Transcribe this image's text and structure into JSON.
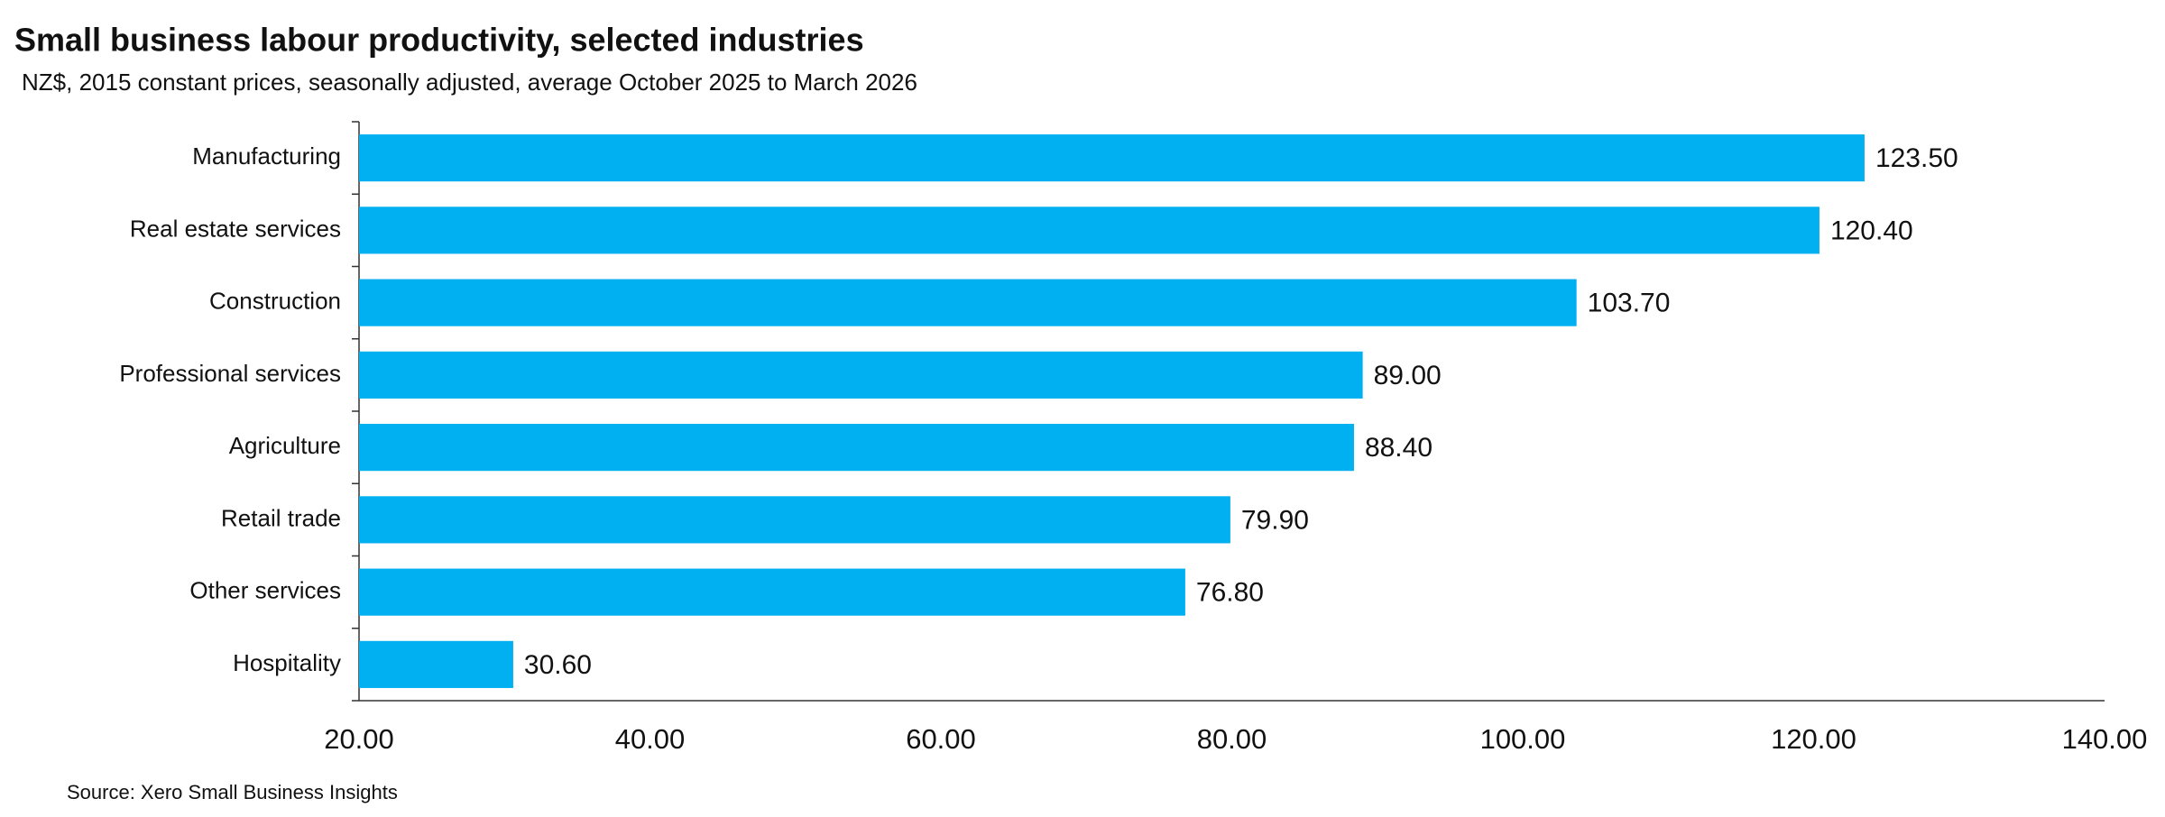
{
  "chart_data": {
    "type": "barh",
    "title": "Small business labour productivity, selected industries",
    "subtitle": "NZ$, 2015 constant prices, seasonally adjusted, average October 2025 to March 2026",
    "source": "Source: Xero Small Business Insights",
    "categories": [
      "Manufacturing",
      "Real estate services",
      "Construction",
      "Professional services",
      "Agriculture",
      "Retail trade",
      "Other services",
      "Hospitality"
    ],
    "values": [
      123.5,
      120.4,
      103.7,
      89.0,
      88.4,
      79.9,
      76.8,
      30.6
    ],
    "value_labels": [
      "123.50",
      "120.40",
      "103.70",
      "89.00",
      "88.40",
      "79.90",
      "76.80",
      "30.60"
    ],
    "color": "#00b0f0",
    "xlim": [
      20,
      140
    ],
    "xticks": [
      {
        "value": 20,
        "label": "20.00"
      },
      {
        "value": 40,
        "label": "40.00"
      },
      {
        "value": 60,
        "label": "60.00"
      },
      {
        "value": 80,
        "label": "80.00"
      },
      {
        "value": 100,
        "label": "100.00"
      },
      {
        "value": 120,
        "label": "120.00"
      },
      {
        "value": 140,
        "label": "140.00"
      }
    ],
    "grid": false
  }
}
